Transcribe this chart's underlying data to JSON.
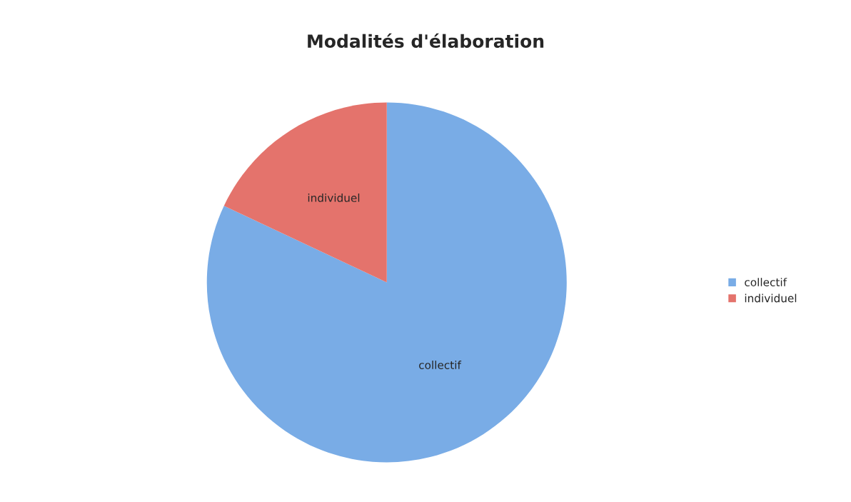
{
  "chart_data": {
    "type": "pie",
    "title": "Modalités d'élaboration",
    "categories": [
      "collectif",
      "individuel"
    ],
    "values": [
      82,
      18
    ],
    "colors": [
      "#79ace6",
      "#e4736c"
    ],
    "legend": "right"
  }
}
